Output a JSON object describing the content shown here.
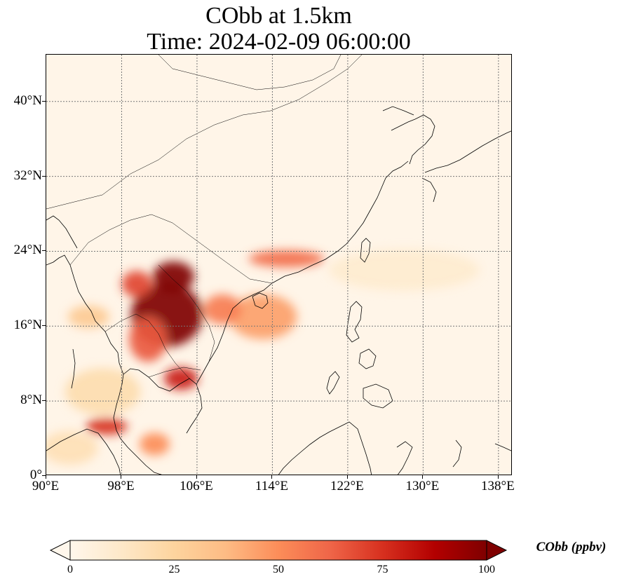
{
  "title": {
    "line1": "CObb at 1.5km",
    "line2": "Time: 2024-02-09 06:00:00"
  },
  "map": {
    "projection": "PlateCarree",
    "extent": {
      "lon_min": 90,
      "lon_max": 139.5,
      "lat_min": 0,
      "lat_max": 45
    },
    "gridlines": "dotted",
    "lat_ticks": [
      {
        "value": 0,
        "label": "0°"
      },
      {
        "value": 8,
        "label": "8°N"
      },
      {
        "value": 16,
        "label": "16°N"
      },
      {
        "value": 24,
        "label": "24°N"
      },
      {
        "value": 32,
        "label": "32°N"
      },
      {
        "value": 40,
        "label": "40°N"
      }
    ],
    "lon_ticks": [
      {
        "value": 90,
        "label": "90°E"
      },
      {
        "value": 98,
        "label": "98°E"
      },
      {
        "value": 106,
        "label": "106°E"
      },
      {
        "value": 114,
        "label": "114°E"
      },
      {
        "value": 122,
        "label": "122°E"
      },
      {
        "value": 130,
        "label": "130°E"
      },
      {
        "value": 138,
        "label": "138°E"
      }
    ],
    "plumes": [
      {
        "name": "indochina-core",
        "lon": 102.8,
        "lat": 17.2,
        "r_lon": 3.8,
        "r_lat": 3.4,
        "value": 100
      },
      {
        "name": "laos-north",
        "lon": 103.5,
        "lat": 21.3,
        "r_lon": 2.2,
        "r_lat": 1.6,
        "value": 100
      },
      {
        "name": "myanmar-east",
        "lon": 99.6,
        "lat": 20.5,
        "r_lon": 1.6,
        "r_lat": 1.4,
        "value": 70
      },
      {
        "name": "thailand-central",
        "lon": 100.8,
        "lat": 14.6,
        "r_lon": 2.0,
        "r_lat": 2.4,
        "value": 65
      },
      {
        "name": "cambodia",
        "lon": 104.3,
        "lat": 10.4,
        "r_lon": 1.8,
        "r_lat": 1.2,
        "value": 80
      },
      {
        "name": "andaman-south",
        "lon": 96.4,
        "lat": 5.3,
        "r_lon": 2.2,
        "r_lat": 0.9,
        "value": 75
      },
      {
        "name": "malacca",
        "lon": 101.5,
        "lat": 3.4,
        "r_lon": 1.6,
        "r_lat": 1.2,
        "value": 50
      },
      {
        "name": "south-china-coast",
        "lon": 115.5,
        "lat": 23.2,
        "r_lon": 4.0,
        "r_lat": 0.9,
        "value": 60
      },
      {
        "name": "sea-plume",
        "lon": 113.0,
        "lat": 17.0,
        "r_lon": 3.6,
        "r_lat": 2.4,
        "value": 45
      },
      {
        "name": "tonkin-gulf",
        "lon": 108.7,
        "lat": 17.8,
        "r_lon": 2.0,
        "r_lat": 1.6,
        "value": 55
      },
      {
        "name": "bay-of-bengal",
        "lon": 94.5,
        "lat": 17.0,
        "r_lon": 2.2,
        "r_lat": 1.2,
        "value": 30
      },
      {
        "name": "andaman-sea",
        "lon": 96.0,
        "lat": 9.0,
        "r_lon": 4.0,
        "r_lat": 2.5,
        "value": 20
      },
      {
        "name": "pacific-band",
        "lon": 128.0,
        "lat": 22.0,
        "r_lon": 8.0,
        "r_lat": 2.2,
        "value": 10
      },
      {
        "name": "equatorial-west",
        "lon": 92.5,
        "lat": 3.0,
        "r_lon": 3.0,
        "r_lat": 1.8,
        "value": 18
      }
    ]
  },
  "colorbar": {
    "label": "CObb (ppbv)",
    "min": 0,
    "max": 100,
    "extend": "both",
    "colormap": "OrRd",
    "stops": [
      "#fff7ec",
      "#fee8c8",
      "#fdd49e",
      "#fdbb84",
      "#fc8d59",
      "#ef6548",
      "#d7301f",
      "#b30000",
      "#7f0000"
    ],
    "ticks": [
      {
        "value": 0,
        "label": "0"
      },
      {
        "value": 25,
        "label": "25"
      },
      {
        "value": 50,
        "label": "50"
      },
      {
        "value": 75,
        "label": "75"
      },
      {
        "value": 100,
        "label": "100"
      }
    ]
  }
}
